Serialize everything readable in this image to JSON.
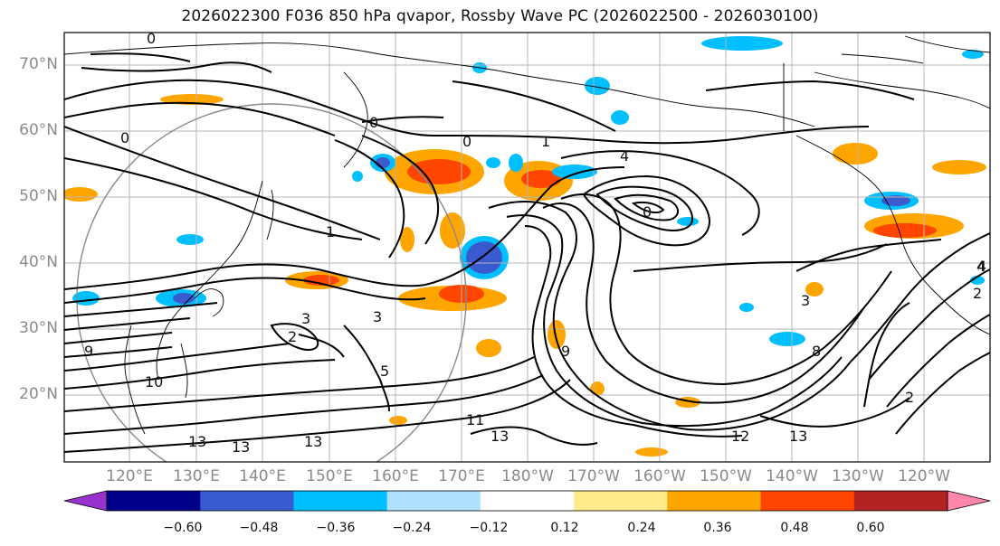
{
  "title": "2026022300 F036 850 hPa qvapor, Rossby Wave PC (2026022500 - 2026030100)",
  "lat_labels": [
    "70°N",
    "60°N",
    "50°N",
    "40°N",
    "30°N",
    "20°N"
  ],
  "lon_labels": [
    "120°E",
    "130°E",
    "140°E",
    "150°E",
    "160°E",
    "170°E",
    "180°W",
    "170°W",
    "160°W",
    "150°W",
    "140°W",
    "130°W",
    "120°W"
  ],
  "colorbar": {
    "tick_labels": [
      "−0.60",
      "−0.48",
      "−0.36",
      "−0.24",
      "−0.12",
      "0.12",
      "0.24",
      "0.36",
      "0.48",
      "0.60"
    ],
    "colors": [
      "#9932cc",
      "#00008b",
      "#3a5bcf",
      "#00bfff",
      "#b0e2ff",
      "#ffffff",
      "#ffeb8a",
      "#ffa500",
      "#ff4500",
      "#b22222",
      "#ff88aa"
    ]
  },
  "contour_labels": [
    {
      "text": "0"
    },
    {
      "text": "0"
    },
    {
      "text": "0"
    },
    {
      "text": "0"
    },
    {
      "text": "0"
    },
    {
      "text": "1"
    },
    {
      "text": "1"
    },
    {
      "text": "4"
    },
    {
      "text": "4"
    },
    {
      "text": "3"
    },
    {
      "text": "3"
    },
    {
      "text": "2"
    },
    {
      "text": "3"
    },
    {
      "text": "9"
    },
    {
      "text": "10"
    },
    {
      "text": "13"
    },
    {
      "text": "13"
    },
    {
      "text": "13"
    },
    {
      "text": "13"
    },
    {
      "text": "11"
    },
    {
      "text": "12"
    },
    {
      "text": "13"
    },
    {
      "text": "5"
    },
    {
      "text": "9"
    },
    {
      "text": "8"
    },
    {
      "text": "2"
    },
    {
      "text": "4"
    },
    {
      "text": "2"
    }
  ]
}
